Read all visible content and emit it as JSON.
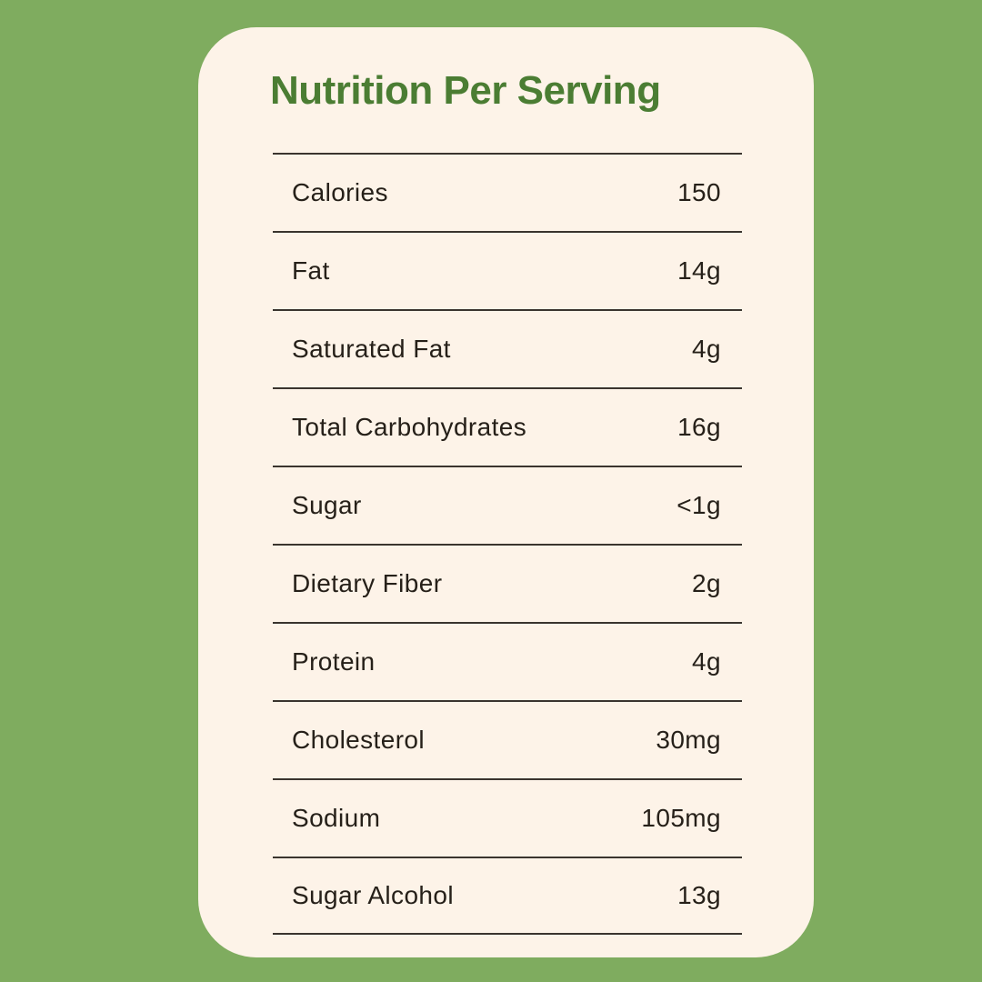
{
  "card": {
    "title": "Nutrition Per Serving",
    "rows": [
      {
        "label": "Calories",
        "value": "150"
      },
      {
        "label": "Fat",
        "value": "14g"
      },
      {
        "label": "Saturated Fat",
        "value": "4g"
      },
      {
        "label": "Total Carbohydrates",
        "value": "16g"
      },
      {
        "label": "Sugar",
        "value": "<1g"
      },
      {
        "label": "Dietary Fiber",
        "value": "2g"
      },
      {
        "label": "Protein",
        "value": "4g"
      },
      {
        "label": "Cholesterol",
        "value": "30mg"
      },
      {
        "label": "Sodium",
        "value": "105mg"
      },
      {
        "label": "Sugar Alcohol",
        "value": "13g"
      }
    ]
  },
  "colors": {
    "background_green": "#7fac5f",
    "card_cream": "#fdf3e8",
    "title_green": "#4b7d33",
    "row_text": "#262019",
    "divider": "#3a342e"
  }
}
